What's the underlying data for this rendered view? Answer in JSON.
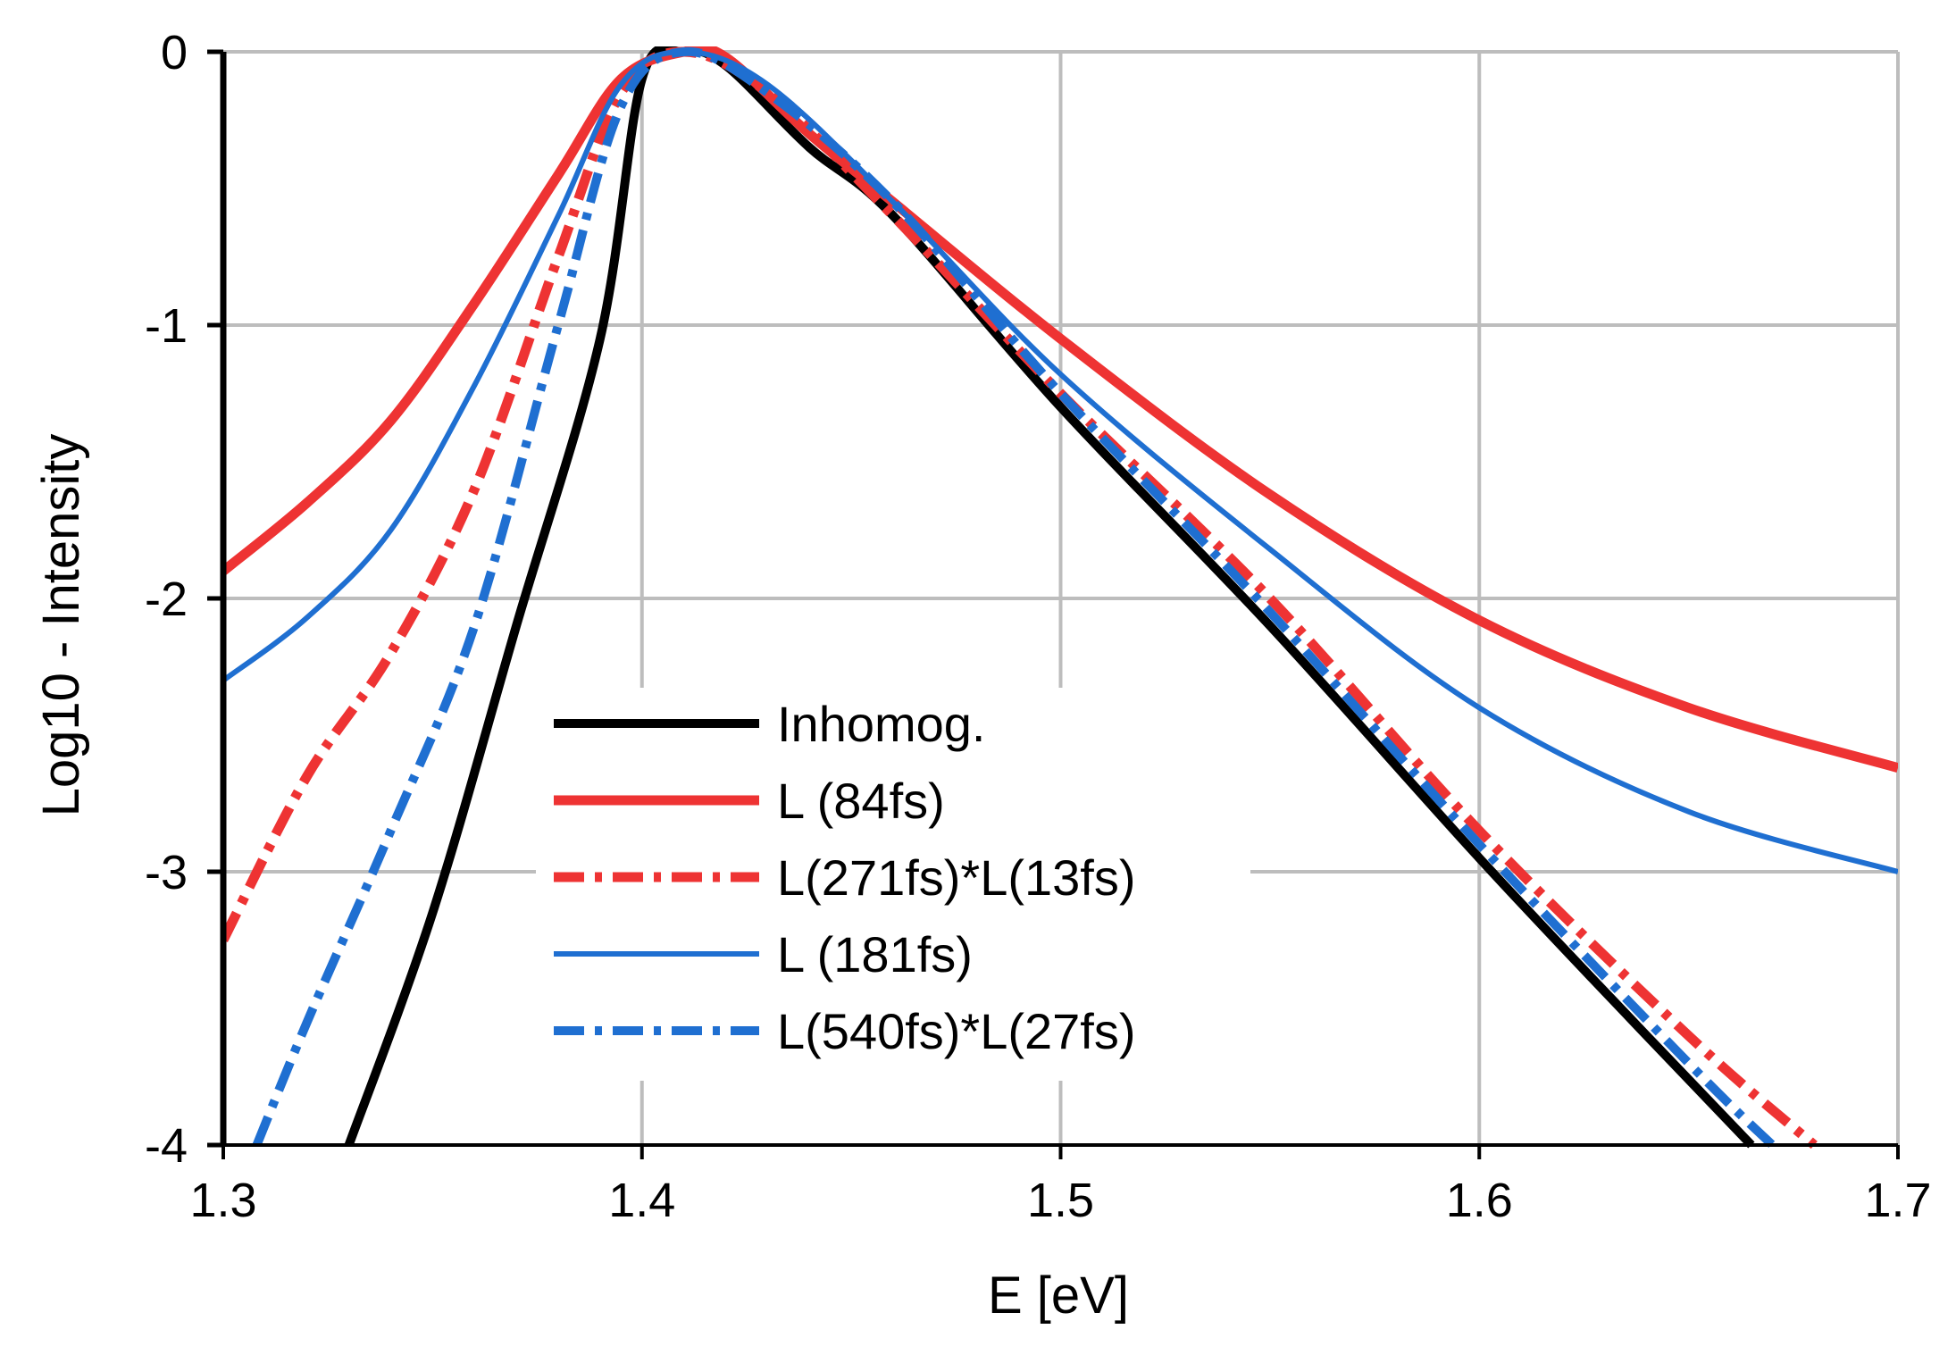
{
  "chart_data": {
    "type": "line",
    "title": "",
    "xlabel": "E [eV]",
    "ylabel": "Log10 - Intensity",
    "xlim": [
      1.3,
      1.7
    ],
    "ylim": [
      -4,
      0
    ],
    "xticks": [
      1.3,
      1.4,
      1.5,
      1.6,
      1.7
    ],
    "yticks": [
      0,
      -1,
      -2,
      -3,
      -4
    ],
    "xtick_labels": [
      "1.3",
      "1.4",
      "1.5",
      "1.6",
      "1.7"
    ],
    "ytick_labels": [
      "0",
      "-1",
      "-2",
      "-3",
      "-4"
    ],
    "grid": true,
    "legend_position": "lower-center",
    "series": [
      {
        "name": "Inhomog.",
        "color": "#000000",
        "style": "solid",
        "x": [
          1.33,
          1.35,
          1.37,
          1.39,
          1.4,
          1.41,
          1.42,
          1.44,
          1.46,
          1.5,
          1.55,
          1.6,
          1.64,
          1.665
        ],
        "y": [
          -4.0,
          -3.15,
          -2.1,
          -1.05,
          -0.1,
          0.0,
          -0.05,
          -0.35,
          -0.6,
          -1.3,
          -2.1,
          -2.95,
          -3.6,
          -4.0
        ]
      },
      {
        "name": "L (84fs)",
        "color": "#ee3333",
        "style": "solid",
        "x": [
          1.3,
          1.32,
          1.34,
          1.36,
          1.38,
          1.395,
          1.41,
          1.42,
          1.44,
          1.46,
          1.5,
          1.55,
          1.6,
          1.65,
          1.7
        ],
        "y": [
          -1.9,
          -1.65,
          -1.35,
          -0.92,
          -0.45,
          -0.1,
          0.0,
          -0.02,
          -0.3,
          -0.55,
          -1.05,
          -1.62,
          -2.08,
          -2.4,
          -2.62
        ]
      },
      {
        "name": "L(271fs)*L(13fs)",
        "color": "#ee3333",
        "style": "dash-dot",
        "x": [
          1.3,
          1.32,
          1.34,
          1.36,
          1.38,
          1.395,
          1.41,
          1.43,
          1.46,
          1.5,
          1.55,
          1.6,
          1.65,
          1.68
        ],
        "y": [
          -3.25,
          -2.65,
          -2.2,
          -1.6,
          -0.75,
          -0.15,
          0.0,
          -0.15,
          -0.6,
          -1.25,
          -2.0,
          -2.85,
          -3.6,
          -4.0
        ]
      },
      {
        "name": "L (181fs)",
        "color": "#1f6fd1",
        "style": "solid",
        "x": [
          1.3,
          1.32,
          1.34,
          1.36,
          1.38,
          1.395,
          1.41,
          1.43,
          1.46,
          1.5,
          1.55,
          1.6,
          1.65,
          1.7
        ],
        "y": [
          -2.3,
          -2.07,
          -1.75,
          -1.22,
          -0.6,
          -0.12,
          0.0,
          -0.12,
          -0.55,
          -1.18,
          -1.82,
          -2.4,
          -2.78,
          -3.0
        ]
      },
      {
        "name": "L(540fs)*L(27fs)",
        "color": "#1f6fd1",
        "style": "dash-dot",
        "x": [
          1.308,
          1.32,
          1.34,
          1.36,
          1.38,
          1.395,
          1.41,
          1.43,
          1.46,
          1.5,
          1.55,
          1.6,
          1.65,
          1.67
        ],
        "y": [
          -4.0,
          -3.55,
          -2.85,
          -2.1,
          -1.0,
          -0.2,
          0.0,
          -0.15,
          -0.55,
          -1.25,
          -2.05,
          -2.9,
          -3.7,
          -4.0
        ]
      }
    ]
  }
}
